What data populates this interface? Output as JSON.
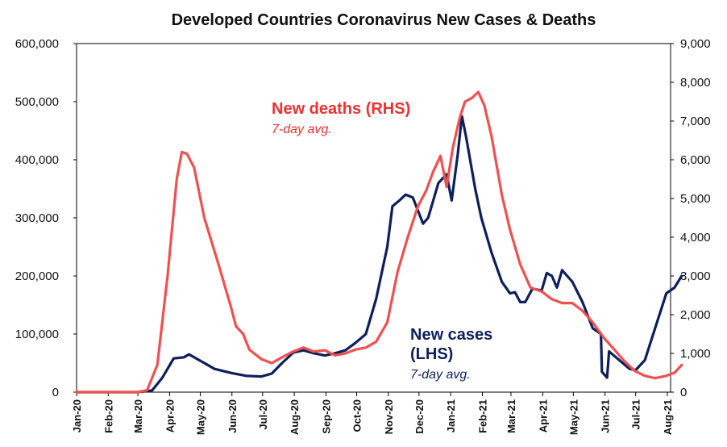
{
  "chart_data": {
    "type": "line",
    "title": "Developed Countries Coronavirus New Cases & Deaths",
    "x": [
      "Jan-20",
      "Feb-20",
      "Mar-20",
      "Apr-20",
      "May-20",
      "Jun-20",
      "Jul-20",
      "Aug-20",
      "Sep-20",
      "Oct-20",
      "Nov-20",
      "Dec-20",
      "Jan-21",
      "Feb-21",
      "Mar-21",
      "Apr-21",
      "May-21",
      "Jun-21",
      "Jul-21",
      "Aug-21"
    ],
    "y_left": {
      "ylim": [
        0,
        600000
      ],
      "ticks": [
        "0",
        "100,000",
        "200,000",
        "300,000",
        "400,000",
        "500,000",
        "600,000"
      ],
      "tick_values": [
        0,
        100000,
        200000,
        300000,
        400000,
        500000,
        600000
      ]
    },
    "y_right": {
      "ylim": [
        0,
        9000
      ],
      "ticks": [
        "0",
        "1,000",
        "2,000",
        "3,000",
        "4,000",
        "5,000",
        "6,000",
        "7,000",
        "8,000",
        "9,000"
      ],
      "tick_values": [
        0,
        1000,
        2000,
        3000,
        4000,
        5000,
        6000,
        7000,
        8000,
        9000
      ]
    },
    "series": [
      {
        "name": "New cases (LHS)",
        "note": "7-day avg.",
        "axis": "left",
        "color": "#0d1f5c",
        "points": [
          [
            "2020-01-01",
            0
          ],
          [
            "2020-02-01",
            0
          ],
          [
            "2020-03-01",
            0
          ],
          [
            "2020-03-15",
            3000
          ],
          [
            "2020-03-25",
            25000
          ],
          [
            "2020-04-05",
            58000
          ],
          [
            "2020-04-15",
            60000
          ],
          [
            "2020-04-20",
            65000
          ],
          [
            "2020-04-30",
            55000
          ],
          [
            "2020-05-15",
            40000
          ],
          [
            "2020-05-31",
            33000
          ],
          [
            "2020-06-15",
            28000
          ],
          [
            "2020-06-30",
            27000
          ],
          [
            "2020-07-10",
            32000
          ],
          [
            "2020-07-20",
            50000
          ],
          [
            "2020-07-31",
            68000
          ],
          [
            "2020-08-10",
            72000
          ],
          [
            "2020-08-20",
            67000
          ],
          [
            "2020-08-31",
            63000
          ],
          [
            "2020-09-10",
            67000
          ],
          [
            "2020-09-20",
            72000
          ],
          [
            "2020-09-30",
            85000
          ],
          [
            "2020-10-10",
            100000
          ],
          [
            "2020-10-20",
            160000
          ],
          [
            "2020-10-31",
            250000
          ],
          [
            "2020-11-05",
            320000
          ],
          [
            "2020-11-12",
            330000
          ],
          [
            "2020-11-18",
            340000
          ],
          [
            "2020-11-25",
            335000
          ],
          [
            "2020-12-05",
            290000
          ],
          [
            "2020-12-10",
            300000
          ],
          [
            "2020-12-20",
            360000
          ],
          [
            "2020-12-28",
            375000
          ],
          [
            "2021-01-02",
            330000
          ],
          [
            "2021-01-08",
            410000
          ],
          [
            "2021-01-12",
            475000
          ],
          [
            "2021-01-16",
            440000
          ],
          [
            "2021-01-25",
            350000
          ],
          [
            "2021-01-31",
            300000
          ],
          [
            "2021-02-10",
            240000
          ],
          [
            "2021-02-20",
            190000
          ],
          [
            "2021-02-28",
            170000
          ],
          [
            "2021-03-05",
            172000
          ],
          [
            "2021-03-10",
            155000
          ],
          [
            "2021-03-15",
            155000
          ],
          [
            "2021-03-22",
            178000
          ],
          [
            "2021-03-31",
            175000
          ],
          [
            "2021-04-05",
            205000
          ],
          [
            "2021-04-10",
            200000
          ],
          [
            "2021-04-15",
            180000
          ],
          [
            "2021-04-20",
            210000
          ],
          [
            "2021-04-25",
            200000
          ],
          [
            "2021-04-30",
            190000
          ],
          [
            "2021-05-10",
            155000
          ],
          [
            "2021-05-20",
            110000
          ],
          [
            "2021-05-28",
            100000
          ],
          [
            "2021-05-29",
            35000
          ],
          [
            "2021-06-03",
            25000
          ],
          [
            "2021-06-05",
            70000
          ],
          [
            "2021-06-15",
            55000
          ],
          [
            "2021-06-25",
            40000
          ],
          [
            "2021-07-01",
            38000
          ],
          [
            "2021-07-10",
            55000
          ],
          [
            "2021-07-20",
            110000
          ],
          [
            "2021-07-31",
            170000
          ],
          [
            "2021-08-08",
            180000
          ],
          [
            "2021-08-15",
            200000
          ]
        ]
      },
      {
        "name": "New deaths (RHS)",
        "note": "7-day avg.",
        "axis": "right",
        "color": "#f05050",
        "points": [
          [
            "2020-01-01",
            0
          ],
          [
            "2020-02-01",
            0
          ],
          [
            "2020-03-01",
            0
          ],
          [
            "2020-03-10",
            50
          ],
          [
            "2020-03-20",
            700
          ],
          [
            "2020-03-30",
            3000
          ],
          [
            "2020-04-08",
            5500
          ],
          [
            "2020-04-13",
            6200
          ],
          [
            "2020-04-18",
            6150
          ],
          [
            "2020-04-25",
            5800
          ],
          [
            "2020-05-05",
            4500
          ],
          [
            "2020-05-20",
            3200
          ],
          [
            "2020-05-31",
            2200
          ],
          [
            "2020-06-05",
            1700
          ],
          [
            "2020-06-12",
            1500
          ],
          [
            "2020-06-18",
            1100
          ],
          [
            "2020-06-30",
            850
          ],
          [
            "2020-07-10",
            750
          ],
          [
            "2020-07-20",
            900
          ],
          [
            "2020-07-31",
            1050
          ],
          [
            "2020-08-10",
            1150
          ],
          [
            "2020-08-20",
            1050
          ],
          [
            "2020-08-31",
            1080
          ],
          [
            "2020-09-10",
            950
          ],
          [
            "2020-09-20",
            1000
          ],
          [
            "2020-09-30",
            1100
          ],
          [
            "2020-10-10",
            1150
          ],
          [
            "2020-10-20",
            1300
          ],
          [
            "2020-10-31",
            1800
          ],
          [
            "2020-11-10",
            3100
          ],
          [
            "2020-11-20",
            4000
          ],
          [
            "2020-11-30",
            4800
          ],
          [
            "2020-12-08",
            5200
          ],
          [
            "2020-12-15",
            5700
          ],
          [
            "2020-12-22",
            6100
          ],
          [
            "2020-12-28",
            5300
          ],
          [
            "2021-01-03",
            6300
          ],
          [
            "2021-01-10",
            7100
          ],
          [
            "2021-01-15",
            7500
          ],
          [
            "2021-01-22",
            7600
          ],
          [
            "2021-01-28",
            7750
          ],
          [
            "2021-02-03",
            7400
          ],
          [
            "2021-02-10",
            6600
          ],
          [
            "2021-02-20",
            5100
          ],
          [
            "2021-02-28",
            4200
          ],
          [
            "2021-03-10",
            3300
          ],
          [
            "2021-03-20",
            2700
          ],
          [
            "2021-03-31",
            2600
          ],
          [
            "2021-04-10",
            2400
          ],
          [
            "2021-04-20",
            2300
          ],
          [
            "2021-04-30",
            2300
          ],
          [
            "2021-05-10",
            2100
          ],
          [
            "2021-05-20",
            1800
          ],
          [
            "2021-05-31",
            1400
          ],
          [
            "2021-06-10",
            1100
          ],
          [
            "2021-06-20",
            800
          ],
          [
            "2021-06-30",
            550
          ],
          [
            "2021-07-10",
            420
          ],
          [
            "2021-07-20",
            360
          ],
          [
            "2021-07-31",
            420
          ],
          [
            "2021-08-08",
            500
          ],
          [
            "2021-08-15",
            700
          ]
        ]
      }
    ]
  },
  "annotations": {
    "deaths_label": "New deaths (RHS)",
    "deaths_note": "7-day avg.",
    "cases_label_line1": "New cases",
    "cases_label_line2": "(LHS)",
    "cases_note": "7-day avg."
  }
}
